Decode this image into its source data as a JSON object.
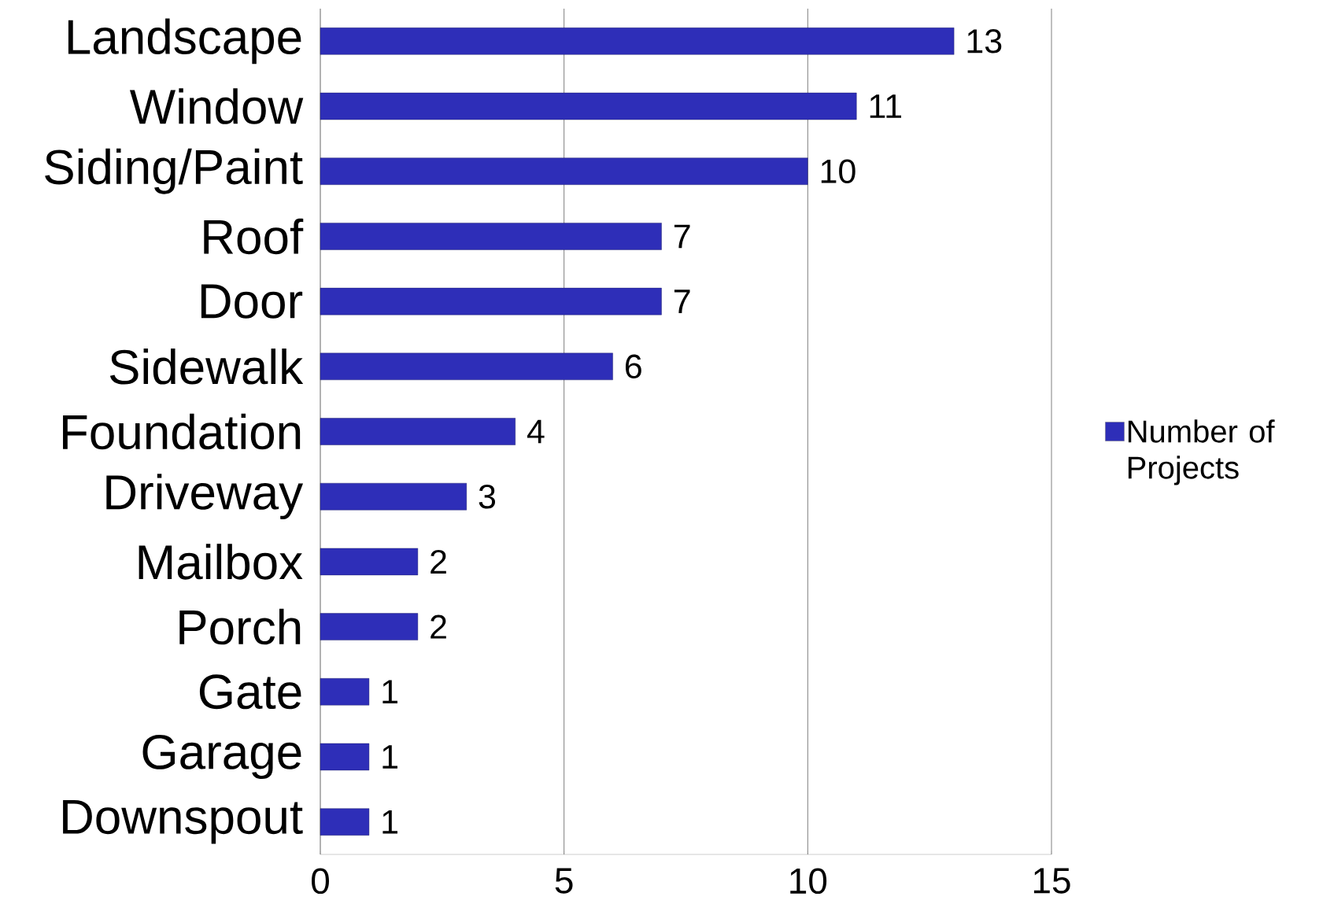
{
  "chart_data": {
    "type": "bar",
    "orientation": "horizontal",
    "categories": [
      "Landscape",
      "Window",
      "Siding/Paint",
      "Roof",
      "Door",
      "Sidewalk",
      "Foundation",
      "Driveway",
      "Mailbox",
      "Porch",
      "Gate",
      "Garage",
      "Downspout"
    ],
    "series": [
      {
        "name": "Number of Projects",
        "color": "#2e2eb8",
        "values": [
          13,
          11,
          10,
          7,
          7,
          6,
          4,
          3,
          2,
          2,
          1,
          1,
          1
        ]
      }
    ],
    "xlim": [
      0,
      15
    ],
    "xticks": [
      0,
      5,
      10,
      15
    ],
    "grid": "x",
    "legend": "right",
    "data_labels": true
  }
}
